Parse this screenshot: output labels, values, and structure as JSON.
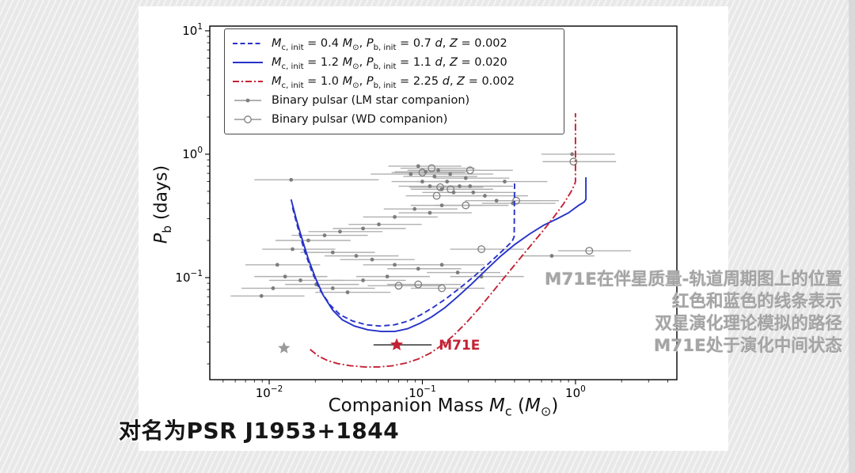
{
  "page": {
    "background_color": "#e8e8e8",
    "panel_color": "#ffffff"
  },
  "overlay": {
    "caption_lines": [
      "M71E在伴星质量-轨道周期图上的位置",
      "红色和蓝色的线条表示",
      "双星演化理论模拟的路径",
      "M71E处于演化中间状态"
    ],
    "subtitle": "对名为PSR J1953+1844",
    "caption_color": "#989898",
    "subtitle_color": "#161616"
  },
  "chart_data": {
    "type": "scatter",
    "title": "",
    "x_scale": "log",
    "y_scale": "log",
    "xlim": [
      0.0041,
      4.6
    ],
    "ylim": [
      0.0149,
      10.9
    ],
    "axes": {
      "x_log_range": [
        -2.388,
        0.662
      ],
      "y_log_range": [
        -1.827,
        1.038
      ],
      "x_major_exponents": [
        -2,
        -1,
        0
      ],
      "y_major_exponents": [
        -1,
        0,
        1
      ]
    },
    "xlabel_parts": [
      {
        "t": "Companion Mass "
      },
      {
        "t": "M",
        "i": 1
      },
      {
        "t": "c",
        "sub": 1
      },
      {
        "t": " ("
      },
      {
        "t": "M",
        "i": 1
      },
      {
        "t": "⊙",
        "sub": 1
      },
      {
        "t": ")"
      }
    ],
    "ylabel_parts": [
      {
        "t": "P",
        "i": 1
      },
      {
        "t": "b",
        "sub": 1
      },
      {
        "t": " (days)"
      }
    ],
    "colors": {
      "blue": "#2633c8",
      "red": "#c42134",
      "point": "#7d7d7d",
      "errorbar": "#b0b0b0",
      "star_gray": "#9a9a9a",
      "frame": "#000000"
    },
    "legend": {
      "entries": [
        {
          "sample": "dashed-blue",
          "parts": [
            {
              "t": "M",
              "i": 1
            },
            {
              "t": "c, init",
              "sub": 1
            },
            {
              "t": " = 0.4 "
            },
            {
              "t": "M",
              "i": 1
            },
            {
              "t": "⊙",
              "sub": 1
            },
            {
              "t": ", "
            },
            {
              "t": "P",
              "i": 1
            },
            {
              "t": "b, init",
              "sub": 1
            },
            {
              "t": " = 0.7 "
            },
            {
              "t": "d",
              "i": 1
            },
            {
              "t": ", "
            },
            {
              "t": "Z",
              "i": 1
            },
            {
              "t": " = 0.002"
            }
          ]
        },
        {
          "sample": "solid-blue",
          "parts": [
            {
              "t": "M",
              "i": 1
            },
            {
              "t": "c, init",
              "sub": 1
            },
            {
              "t": " = 1.2 "
            },
            {
              "t": "M",
              "i": 1
            },
            {
              "t": "⊙",
              "sub": 1
            },
            {
              "t": ", "
            },
            {
              "t": "P",
              "i": 1
            },
            {
              "t": "b, init",
              "sub": 1
            },
            {
              "t": " = 1.1 "
            },
            {
              "t": "d",
              "i": 1
            },
            {
              "t": ", "
            },
            {
              "t": "Z",
              "i": 1
            },
            {
              "t": " = 0.020"
            }
          ]
        },
        {
          "sample": "dashdot-red",
          "parts": [
            {
              "t": "M",
              "i": 1
            },
            {
              "t": "c, init",
              "sub": 1
            },
            {
              "t": " = 1.0 "
            },
            {
              "t": "M",
              "i": 1
            },
            {
              "t": "⊙",
              "sub": 1
            },
            {
              "t": ", "
            },
            {
              "t": "P",
              "i": 1
            },
            {
              "t": "b, init",
              "sub": 1
            },
            {
              "t": " = 2.25 "
            },
            {
              "t": "d",
              "i": 1
            },
            {
              "t": ", "
            },
            {
              "t": "Z",
              "i": 1
            },
            {
              "t": " = 0.002"
            }
          ]
        },
        {
          "sample": "lm",
          "parts": [
            {
              "t": "Binary pulsar (LM star companion)"
            }
          ]
        },
        {
          "sample": "wd",
          "parts": [
            {
              "t": "Binary pulsar (WD companion)"
            }
          ]
        }
      ]
    },
    "series": [
      {
        "name": "track-0.4Msun-Z0.002",
        "style": "dashed",
        "color": "blue",
        "points": [
          [
            0.0142,
            0.37
          ],
          [
            0.0155,
            0.245
          ],
          [
            0.017,
            0.165
          ],
          [
            0.019,
            0.112
          ],
          [
            0.0215,
            0.079
          ],
          [
            0.025,
            0.06
          ],
          [
            0.029,
            0.05
          ],
          [
            0.035,
            0.0445
          ],
          [
            0.043,
            0.0415
          ],
          [
            0.053,
            0.0405
          ],
          [
            0.066,
            0.0415
          ],
          [
            0.081,
            0.0445
          ],
          [
            0.098,
            0.05
          ],
          [
            0.118,
            0.0575
          ],
          [
            0.143,
            0.0675
          ],
          [
            0.175,
            0.082
          ],
          [
            0.215,
            0.101
          ],
          [
            0.265,
            0.127
          ],
          [
            0.325,
            0.16
          ],
          [
            0.385,
            0.196
          ],
          [
            0.398,
            0.215
          ],
          [
            0.4,
            0.6
          ]
        ]
      },
      {
        "name": "track-1.2Msun-Z0.020",
        "style": "solid",
        "color": "blue",
        "points": [
          [
            0.0139,
            0.43
          ],
          [
            0.015,
            0.3
          ],
          [
            0.0163,
            0.21
          ],
          [
            0.018,
            0.142
          ],
          [
            0.02,
            0.1
          ],
          [
            0.0225,
            0.072
          ],
          [
            0.026,
            0.0545
          ],
          [
            0.03,
            0.0455
          ],
          [
            0.036,
            0.0405
          ],
          [
            0.044,
            0.0378
          ],
          [
            0.054,
            0.0366
          ],
          [
            0.066,
            0.0366
          ],
          [
            0.08,
            0.0385
          ],
          [
            0.096,
            0.0425
          ],
          [
            0.115,
            0.048
          ],
          [
            0.14,
            0.057
          ],
          [
            0.17,
            0.07
          ],
          [
            0.21,
            0.089
          ],
          [
            0.26,
            0.115
          ],
          [
            0.32,
            0.147
          ],
          [
            0.4,
            0.185
          ],
          [
            0.5,
            0.225
          ],
          [
            0.62,
            0.266
          ],
          [
            0.76,
            0.3
          ],
          [
            0.9,
            0.335
          ],
          [
            1.05,
            0.385
          ],
          [
            1.14,
            0.41
          ],
          [
            1.17,
            0.43
          ],
          [
            1.17,
            0.65
          ]
        ]
      },
      {
        "name": "track-1.0Msun-Z0.002",
        "style": "dashdot",
        "color": "red",
        "points": [
          [
            0.0185,
            0.0262
          ],
          [
            0.021,
            0.0231
          ],
          [
            0.024,
            0.0213
          ],
          [
            0.028,
            0.0201
          ],
          [
            0.034,
            0.0193
          ],
          [
            0.042,
            0.0189
          ],
          [
            0.052,
            0.0189
          ],
          [
            0.064,
            0.0193
          ],
          [
            0.078,
            0.0203
          ],
          [
            0.094,
            0.0219
          ],
          [
            0.113,
            0.0245
          ],
          [
            0.135,
            0.0285
          ],
          [
            0.162,
            0.0345
          ],
          [
            0.195,
            0.0435
          ],
          [
            0.235,
            0.0565
          ],
          [
            0.285,
            0.0755
          ],
          [
            0.345,
            0.101
          ],
          [
            0.42,
            0.136
          ],
          [
            0.51,
            0.182
          ],
          [
            0.615,
            0.24
          ],
          [
            0.73,
            0.315
          ],
          [
            0.84,
            0.4
          ],
          [
            0.93,
            0.49
          ],
          [
            0.985,
            0.565
          ],
          [
            1.0,
            0.6
          ],
          [
            1.0,
            2.15
          ]
        ]
      }
    ],
    "binary_pulsars_lm": [
      [
        0.0139,
        0.62,
        0.008,
        0.052
      ],
      [
        0.084,
        0.69,
        0.046,
        0.15
      ],
      [
        0.094,
        0.8,
        0.06,
        0.18
      ],
      [
        0.105,
        0.72,
        0.066,
        0.2
      ],
      [
        0.127,
        0.74,
        0.08,
        0.24
      ],
      [
        0.152,
        0.69,
        0.095,
        0.29
      ],
      [
        0.192,
        0.64,
        0.12,
        0.37
      ],
      [
        0.12,
        0.66,
        0.075,
        0.228
      ],
      [
        0.145,
        0.6,
        0.091,
        0.276
      ],
      [
        0.1,
        0.6,
        0.063,
        0.19
      ],
      [
        0.175,
        0.55,
        0.11,
        0.333
      ],
      [
        0.205,
        0.55,
        0.129,
        0.39
      ],
      [
        0.112,
        0.55,
        0.07,
        0.21
      ],
      [
        0.134,
        0.52,
        0.084,
        0.25
      ],
      [
        0.16,
        0.49,
        0.1,
        0.31
      ],
      [
        0.215,
        0.49,
        0.135,
        0.41
      ],
      [
        0.256,
        0.46,
        0.16,
        0.49
      ],
      [
        0.305,
        0.42,
        0.19,
        0.58
      ],
      [
        0.39,
        0.4,
        0.245,
        0.74
      ],
      [
        0.345,
        0.6,
        0.216,
        0.655
      ],
      [
        0.134,
        0.385,
        0.084,
        0.25
      ],
      [
        0.089,
        0.36,
        0.056,
        0.17
      ],
      [
        0.112,
        0.335,
        0.07,
        0.21
      ],
      [
        0.066,
        0.31,
        0.041,
        0.126
      ],
      [
        0.052,
        0.27,
        0.033,
        0.099
      ],
      [
        0.041,
        0.25,
        0.026,
        0.078
      ],
      [
        0.029,
        0.236,
        0.018,
        0.055
      ],
      [
        0.023,
        0.22,
        0.014,
        0.044
      ],
      [
        0.018,
        0.2,
        0.011,
        0.034
      ],
      [
        0.0142,
        0.17,
        0.009,
        0.027
      ],
      [
        0.026,
        0.16,
        0.016,
        0.049
      ],
      [
        0.037,
        0.15,
        0.023,
        0.07
      ],
      [
        0.047,
        0.14,
        0.029,
        0.089
      ],
      [
        0.066,
        0.127,
        0.041,
        0.126
      ],
      [
        0.094,
        0.118,
        0.059,
        0.179
      ],
      [
        0.134,
        0.127,
        0.084,
        0.255
      ],
      [
        0.17,
        0.11,
        0.107,
        0.323
      ],
      [
        0.243,
        0.102,
        0.152,
        0.46
      ],
      [
        0.0113,
        0.127,
        0.007,
        0.0215
      ],
      [
        0.0127,
        0.102,
        0.008,
        0.024
      ],
      [
        0.016,
        0.095,
        0.01,
        0.03
      ],
      [
        0.0203,
        0.088,
        0.0127,
        0.0386
      ],
      [
        0.026,
        0.082,
        0.016,
        0.049
      ],
      [
        0.0325,
        0.076,
        0.02,
        0.062
      ],
      [
        0.0106,
        0.082,
        0.0066,
        0.02
      ],
      [
        0.0089,
        0.071,
        0.0056,
        0.017
      ],
      [
        0.041,
        0.095,
        0.026,
        0.078
      ],
      [
        0.059,
        0.102,
        0.037,
        0.112
      ],
      [
        0.7,
        0.15,
        0.44,
        1.33
      ],
      [
        0.95,
        1.0,
        0.6,
        1.81
      ]
    ],
    "binary_pulsars_wd": [
      [
        0.1,
        0.71,
        0.063,
        0.19
      ],
      [
        0.115,
        0.77,
        0.072,
        0.22
      ],
      [
        0.205,
        0.74,
        0.13,
        0.39
      ],
      [
        0.131,
        0.54,
        0.082,
        0.25
      ],
      [
        0.153,
        0.52,
        0.096,
        0.29
      ],
      [
        0.124,
        0.46,
        0.078,
        0.236
      ],
      [
        0.192,
        0.385,
        0.12,
        0.365
      ],
      [
        0.41,
        0.42,
        0.26,
        0.78
      ],
      [
        0.094,
        0.088,
        0.059,
        0.179
      ],
      [
        0.134,
        0.082,
        0.084,
        0.255
      ],
      [
        0.243,
        0.17,
        0.152,
        0.46
      ],
      [
        0.97,
        0.87,
        0.61,
        1.84
      ],
      [
        1.23,
        0.165,
        0.77,
        2.3
      ],
      [
        0.07,
        0.086,
        0.044,
        0.133
      ]
    ],
    "m71e": {
      "m": 0.068,
      "p": 0.0285,
      "lo": 0.048,
      "hi": 0.115,
      "label": "M71E"
    },
    "gray_star": {
      "m": 0.0125,
      "p": 0.0268
    }
  }
}
